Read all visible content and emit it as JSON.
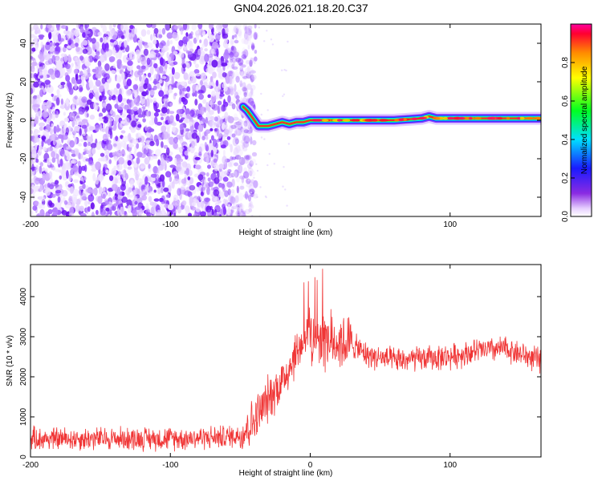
{
  "title": "GN04.2026.021.18.20.C37",
  "colors": {
    "spectrogram_noise": "#7a1fff",
    "snr_line": "#f03535"
  },
  "chart_data": [
    {
      "type": "heatmap",
      "xlabel": "Height of straight line (km)",
      "ylabel": "Frequency (Hz)",
      "xlim": [
        -200,
        165
      ],
      "ylim": [
        -50,
        50
      ],
      "xticks": [
        -200,
        -100,
        0,
        100
      ],
      "yticks": [
        -40,
        -20,
        0,
        20,
        40
      ],
      "noise_region_x": [
        -200,
        -45
      ],
      "ridge": {
        "x": [
          -48,
          -45,
          -40,
          -37,
          -35,
          -30,
          -25,
          -20,
          -15,
          -10,
          -5,
          0,
          5,
          20,
          40,
          60,
          80,
          85,
          90,
          100,
          120,
          140,
          165
        ],
        "freq": [
          7,
          5,
          0,
          -3,
          -3,
          -3,
          -2,
          -1,
          -2,
          -1,
          -1,
          0,
          0,
          0,
          0,
          0,
          1,
          2,
          1,
          1,
          1,
          1,
          1
        ]
      },
      "colorbar": {
        "label": "Normalized spectral amplitude",
        "range": [
          0,
          1
        ],
        "ticks": [
          "0.0",
          "0.2",
          "0.4",
          "0.6",
          "0.8"
        ]
      }
    },
    {
      "type": "line",
      "xlabel": "Height of straight line (km)",
      "ylabel": "SNR (10 * v/v)",
      "xlim": [
        -200,
        165
      ],
      "ylim": [
        0,
        4800
      ],
      "xticks": [
        -200,
        -100,
        0,
        100
      ],
      "yticks": [
        0,
        1000,
        2000,
        3000,
        4000
      ],
      "series": [
        {
          "x": [
            -200,
            -150,
            -100,
            -60,
            -50,
            -40,
            -30,
            -20,
            -10,
            -5,
            0,
            5,
            10,
            20,
            30,
            40,
            60,
            80,
            100,
            120,
            140,
            160,
            165
          ],
          "values": [
            450,
            460,
            460,
            500,
            550,
            900,
            1450,
            1900,
            2600,
            2900,
            3100,
            3000,
            2900,
            2900,
            2800,
            2550,
            2400,
            2450,
            2500,
            2650,
            2700,
            2450,
            2400
          ]
        }
      ]
    }
  ]
}
